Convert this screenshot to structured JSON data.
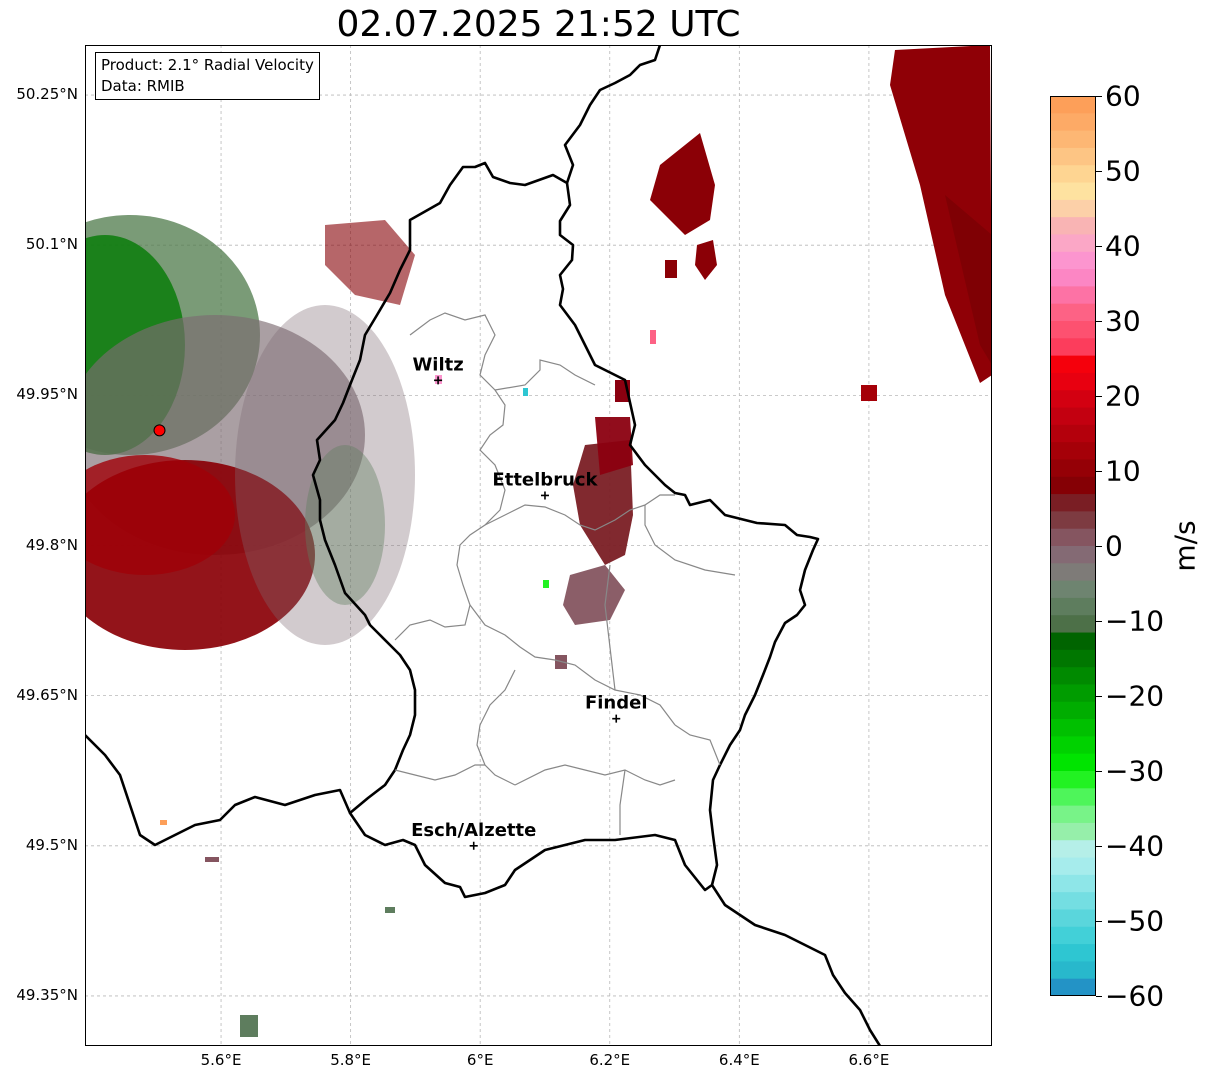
{
  "title": "02.07.2025 21:52 UTC",
  "info": {
    "product": "Product: 2.1° Radial Velocity",
    "data": "Data: RMIB"
  },
  "axes": {
    "lat_ticks": [
      "50.25°N",
      "50.1°N",
      "49.95°N",
      "49.8°N",
      "49.65°N",
      "49.5°N",
      "49.35°N"
    ],
    "lon_ticks": [
      "5.6°E",
      "5.8°E",
      "6°E",
      "6.2°E",
      "6.4°E",
      "6.6°E"
    ],
    "lat_values": [
      50.25,
      50.1,
      49.95,
      49.8,
      49.65,
      49.5,
      49.35
    ],
    "lon_values": [
      5.6,
      5.8,
      6.0,
      6.2,
      6.4,
      6.6
    ],
    "lon_range": [
      5.39,
      6.79
    ],
    "lat_range": [
      49.3,
      50.3
    ]
  },
  "radar_site": {
    "lon": 5.505,
    "lat": 49.915,
    "color": "#ff0000"
  },
  "cities": [
    {
      "name": "Wiltz",
      "lon": 5.935,
      "lat": 49.965
    },
    {
      "name": "Ettelbruck",
      "lon": 6.1,
      "lat": 49.85
    },
    {
      "name": "Findel",
      "lon": 6.21,
      "lat": 49.627
    },
    {
      "name": "Esch/Alzette",
      "lon": 5.99,
      "lat": 49.5
    }
  ],
  "colorbar": {
    "label": "m/s",
    "ticks": [
      "60",
      "50",
      "40",
      "30",
      "20",
      "10",
      "0",
      "−10",
      "−20",
      "−30",
      "−40",
      "−50",
      "−60"
    ],
    "tick_values": [
      60,
      50,
      40,
      30,
      20,
      10,
      0,
      -10,
      -20,
      -30,
      -40,
      -50,
      -60
    ],
    "range": [
      -60,
      60
    ],
    "colors_top_to_bottom": [
      "#fd9f59",
      "#fdaa66",
      "#fdb774",
      "#fdc584",
      "#fed592",
      "#fee2a0",
      "#fcd0a8",
      "#f9b4b4",
      "#fba7c6",
      "#fc95cf",
      "#fc86c4",
      "#fd72a5",
      "#fd6285",
      "#fd5170",
      "#fc3d5c",
      "#f5000c",
      "#e80010",
      "#d30011",
      "#c30010",
      "#b4000c",
      "#a50008",
      "#950006",
      "#850005",
      "#7a1e24",
      "#7d3b41",
      "#855560",
      "#846a74",
      "#7e7b78",
      "#6e8470",
      "#5e7d5e",
      "#4d7048",
      "#006400",
      "#007700",
      "#008a00",
      "#009c00",
      "#00ad00",
      "#00c000",
      "#00d200",
      "#00e400",
      "#22f222",
      "#4ef55a",
      "#78f388",
      "#96efaa",
      "#b5efe8",
      "#a6ecec",
      "#8ee6e8",
      "#74dee2",
      "#5ad6dc",
      "#42d0d8",
      "#2ec6d2",
      "#28b8cc",
      "#2393c6"
    ]
  }
}
